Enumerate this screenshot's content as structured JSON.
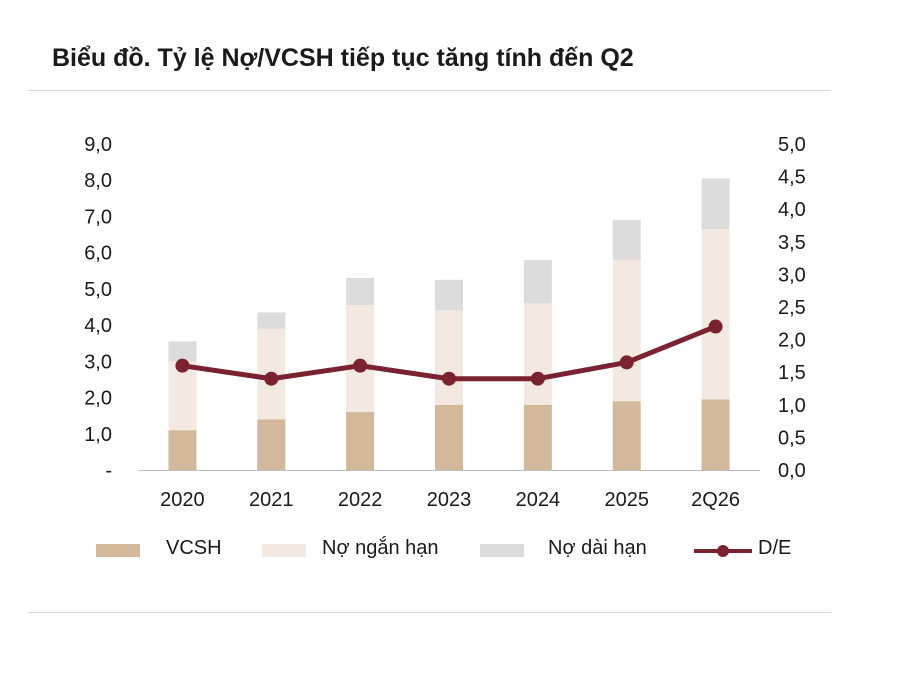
{
  "title": "Biểu đồ. Tỷ lệ Nợ/VCSH tiếp tục tăng tính đến Q2",
  "colors": {
    "vcsh": "#d3b99b",
    "no_ngan_han": "#f4e9e0",
    "no_dai_han": "#dcdcdc",
    "de": "#7a2230",
    "axis": "#bfbfbf",
    "rule": "#d9d9d9"
  },
  "chart_data": {
    "type": "bar",
    "stacked": true,
    "categories": [
      "2020",
      "2021",
      "2022",
      "2023",
      "2024",
      "2025",
      "2Q26"
    ],
    "series": [
      {
        "name": "VCSH",
        "type": "bar",
        "axis": "left",
        "values": [
          1.1,
          1.4,
          1.6,
          1.8,
          1.8,
          1.9,
          1.95
        ]
      },
      {
        "name": "Nợ ngắn hạn",
        "type": "bar",
        "axis": "left",
        "values": [
          1.9,
          2.5,
          2.95,
          2.6,
          2.8,
          3.9,
          4.7
        ]
      },
      {
        "name": "Nợ dài hạn",
        "type": "bar",
        "axis": "left",
        "values": [
          0.55,
          0.45,
          0.75,
          0.85,
          1.2,
          1.1,
          1.4
        ]
      },
      {
        "name": "D/E",
        "type": "line",
        "axis": "right",
        "values": [
          1.6,
          1.4,
          1.6,
          1.4,
          1.4,
          1.65,
          2.2
        ]
      }
    ],
    "y_left": {
      "ylim": [
        0,
        9
      ],
      "ticks": [
        0,
        1,
        2,
        3,
        4,
        5,
        6,
        7,
        8,
        9
      ],
      "tick_labels": [
        "-",
        "1,0",
        "2,0",
        "3,0",
        "4,0",
        "5,0",
        "6,0",
        "7,0",
        "8,0",
        "9,0"
      ]
    },
    "y_right": {
      "ylim": [
        0,
        5
      ],
      "ticks": [
        0,
        0.5,
        1,
        1.5,
        2,
        2.5,
        3,
        3.5,
        4,
        4.5,
        5
      ],
      "tick_labels": [
        "0,0",
        "0,5",
        "1,0",
        "1,5",
        "2,0",
        "2,5",
        "3,0",
        "3,5",
        "4,0",
        "4,5",
        "5,0"
      ]
    },
    "grid": false,
    "legend_position": "bottom"
  },
  "legend": {
    "vcsh": "VCSH",
    "no_ngan_han": "Nợ ngắn hạn",
    "no_dai_han": "Nợ dài hạn",
    "de": "D/E"
  }
}
